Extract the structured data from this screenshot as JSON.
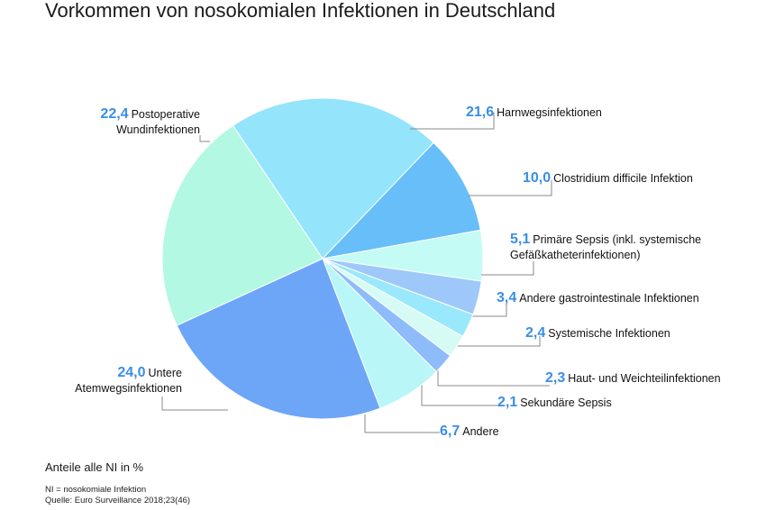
{
  "title": "Vorkommen von nosokomialen Infektionen in Deutschland",
  "subtitle": "Anteile alle NI in %",
  "footnote": [
    "NI = nosokomiale Infektion",
    "Quelle: Euro Surveillance 2018;23(46)"
  ],
  "chart_data": {
    "type": "pie",
    "unit": "%",
    "title": "Vorkommen von nosokomialen Infektionen in Deutschland",
    "slices": [
      {
        "value": 21.6,
        "value_text": "21,6",
        "label": [
          "Harnwegsinfektionen"
        ],
        "color": "#94e4fb"
      },
      {
        "value": 10.0,
        "value_text": "10,0",
        "label": [
          "Clostridium difficile Infektion"
        ],
        "color": "#67bef8"
      },
      {
        "value": 5.1,
        "value_text": "5,1",
        "label": [
          "Primäre Sepsis (inkl. systemische",
          "Gefäßkatheterinfektionen)"
        ],
        "color": "#c4fbf5"
      },
      {
        "value": 3.4,
        "value_text": "3,4",
        "label": [
          "Andere gastrointestinale Infektionen"
        ],
        "color": "#9ec8fa"
      },
      {
        "value": 2.4,
        "value_text": "2,4",
        "label": [
          "Systemische Infektionen"
        ],
        "color": "#9ae8fb"
      },
      {
        "value": 2.3,
        "value_text": "2,3",
        "label": [
          "Haut- und Weichteilinfektionen"
        ],
        "color": "#d6fbf5"
      },
      {
        "value": 2.1,
        "value_text": "2,1",
        "label": [
          "Sekundäre Sepsis"
        ],
        "color": "#8ebcfb"
      },
      {
        "value": 6.7,
        "value_text": "6,7",
        "label": [
          "Andere"
        ],
        "color": "#b8f6f8"
      },
      {
        "value": 24.0,
        "value_text": "24,0",
        "label": [
          "Untere",
          "Atemwegsinfektionen"
        ],
        "color": "#6ea6f7"
      },
      {
        "value": 22.4,
        "value_text": "22,4",
        "label": [
          "Postoperative",
          "Wundinfektionen"
        ],
        "color": "#b3f8e2"
      }
    ],
    "value_color": "#3a8ee6"
  }
}
